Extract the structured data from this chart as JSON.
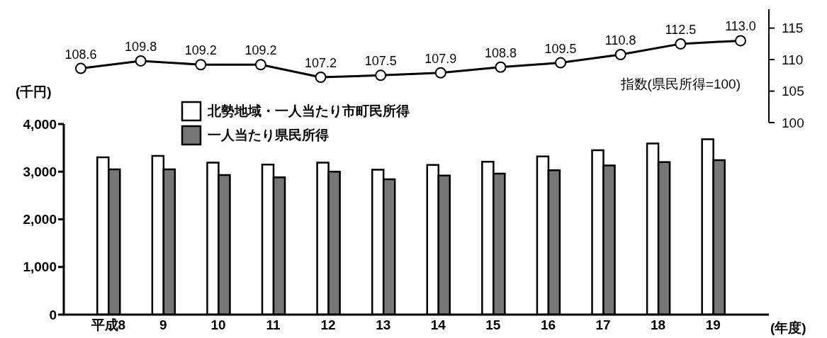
{
  "chart_data": [
    {
      "type": "line",
      "categories": [
        null,
        null,
        null,
        null,
        null,
        null,
        null,
        null,
        null,
        null,
        null,
        null
      ],
      "series": [
        {
          "color": "#000000",
          "values": [
            108.6,
            109.8,
            109.2,
            109.2,
            107.2,
            107.5,
            107.9,
            108.8,
            109.5,
            110.8,
            112.5,
            113.0
          ]
        }
      ],
      "ylabel": "指数(県民所得=100)",
      "ylim": [
        100,
        118
      ],
      "yticks": [
        100,
        105,
        110,
        115
      ],
      "tick_labels": "y",
      "value_labels": [
        "108.6",
        "109.8",
        "109.2",
        "109.2",
        "107.2",
        "107.5",
        "107.9",
        "108.8",
        "109.5",
        "110.8",
        "112.5",
        "113.0"
      ],
      "marker": "circle",
      "line_style": "solid",
      "grid": false
    },
    {
      "type": "bar",
      "categories": [
        "平成8",
        "9",
        "10",
        "11",
        "12",
        "13",
        "14",
        "15",
        "16",
        "17",
        "18",
        "19"
      ],
      "series": [
        {
          "name": "北勢地域・一人当たり市町民所得",
          "color": "#ffffff",
          "values": [
            3300,
            3330,
            3190,
            3150,
            3190,
            3040,
            3140,
            3210,
            3320,
            3450,
            3590,
            3680
          ]
        },
        {
          "name": "一人当たり県民所得",
          "color": "#767676",
          "values": [
            3050,
            3050,
            2930,
            2880,
            3000,
            2840,
            2920,
            2960,
            3030,
            3130,
            3200,
            3240
          ]
        }
      ],
      "ylabel": "(千円)",
      "xlabel": "(年度)",
      "ylim": [
        0,
        4000
      ],
      "yticks": [
        0,
        {
          "value": 1000,
          "label": "1,000"
        },
        {
          "value": 2000,
          "label": "2,000"
        },
        {
          "value": 3000,
          "label": "3,000"
        },
        {
          "value": 4000,
          "label": "4,000"
        }
      ],
      "grid": false,
      "legend": "top"
    }
  ]
}
